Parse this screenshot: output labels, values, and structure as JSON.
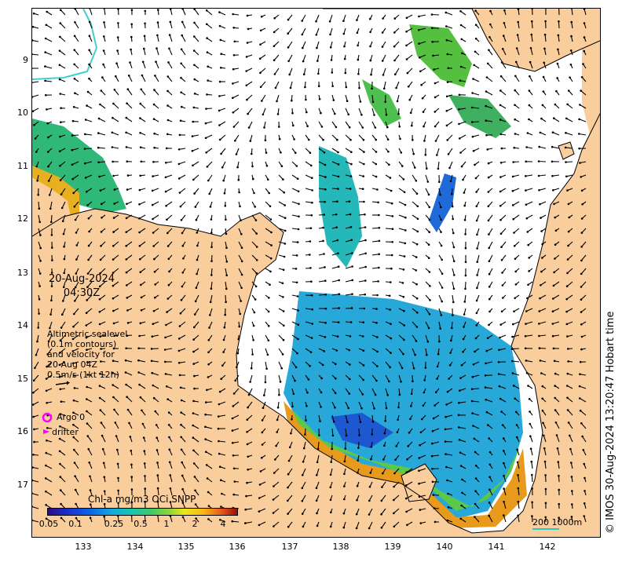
{
  "map": {
    "date": "20-Aug-2024",
    "time": "04:30Z",
    "legend_lines": [
      "Altimetric sealevel",
      "(0.1m contours)",
      "and velocity for",
      "20 Aug 04Z",
      "0.5m/s (1kt 12h)"
    ],
    "argo_label": "Argo 0",
    "drifter_label": "drifter",
    "copyright": "© IMOS 30-Aug-2024 13:20:47 Hobart time",
    "colorbar_title": "Chl-a mg/m3 OCi SNPP",
    "colorbar_ticks": [
      "0.05",
      "0.1",
      "0.25",
      "0.5",
      "1",
      "2",
      "4"
    ],
    "scale_label": "200  1000m",
    "y_ticks": [
      "9",
      "10",
      "11",
      "12",
      "13",
      "14",
      "15",
      "16",
      "17"
    ],
    "x_ticks": [
      "133",
      "134",
      "135",
      "136",
      "137",
      "138",
      "139",
      "140",
      "141",
      "142"
    ],
    "colors": {
      "land": "#facd9c",
      "sea": "#ffffff",
      "argo": "#ff00ff",
      "drifter": "#ff00ff",
      "contour": "#40d0d0"
    }
  }
}
